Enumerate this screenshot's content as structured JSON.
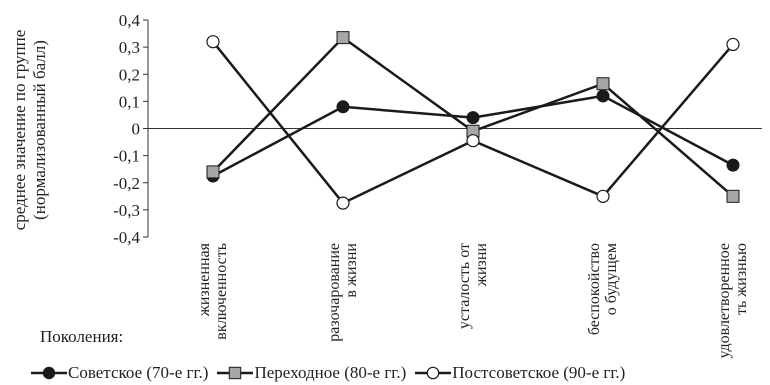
{
  "chart_data": {
    "type": "line",
    "ylabel": [
      "среднее значение по группе",
      "(нормализованный балл)"
    ],
    "ylim": [
      -0.4,
      0.4
    ],
    "yticks": [
      -0.4,
      -0.3,
      -0.2,
      -0.1,
      0,
      0.1,
      0.2,
      0.3,
      0.4
    ],
    "ytick_labels": [
      "-0,4",
      "-0,3",
      "-0,2",
      "-0,1",
      "0",
      "0,1",
      "0,2",
      "0,3",
      "0,4"
    ],
    "categories": [
      [
        "жизненная",
        "включенность"
      ],
      [
        "разочарование",
        "в жизни"
      ],
      [
        "усталость от",
        "жизни"
      ],
      [
        "беспокойство",
        "о будущем"
      ],
      [
        "удовлетворенное",
        "ть жизнью"
      ]
    ],
    "legend_title": "Поколения:",
    "series": [
      {
        "name": "Советское (70-е гг.)",
        "marker": "filled-circle",
        "color": "#1a1a1a",
        "values": [
          -0.175,
          0.08,
          0.04,
          0.12,
          -0.135
        ]
      },
      {
        "name": "Переходное (80-е гг.)",
        "marker": "gray-square",
        "color": "#1a1a1a",
        "values": [
          -0.16,
          0.335,
          -0.01,
          0.165,
          -0.25
        ]
      },
      {
        "name": "Постсоветское (90-е гг.)",
        "marker": "open-circle",
        "color": "#1a1a1a",
        "values": [
          0.32,
          -0.275,
          -0.045,
          -0.25,
          0.31
        ]
      }
    ],
    "grid": false,
    "legend_position": "bottom"
  }
}
